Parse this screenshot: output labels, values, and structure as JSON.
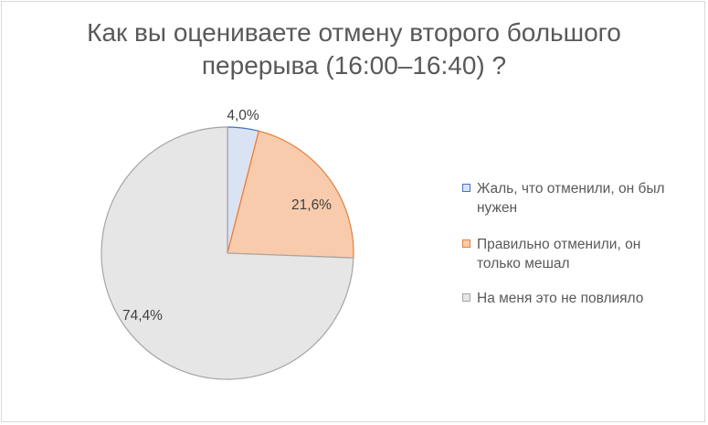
{
  "chart_data": {
    "type": "pie",
    "title": "Как вы оцениваете отмену второго большого перерыва (16:00–16:40) ?",
    "title_lines": [
      "Как вы оцениваете отмену второго большого",
      "перерыва (16:00–16:40) ?"
    ],
    "legend_position": "right",
    "slices": [
      {
        "label": "Жаль, что отменили, он был нужен",
        "legend_lines": [
          "Жаль, что отменили, он был",
          "нужен"
        ],
        "value": 4.0,
        "value_label": "4,0%",
        "fill": "#dae3f3",
        "stroke": "#4472c4"
      },
      {
        "label": "Правильно отменили, он только мешал",
        "legend_lines": [
          "Правильно отменили, он",
          "только мешал"
        ],
        "value": 21.6,
        "value_label": "21,6%",
        "fill": "#f8cbad",
        "stroke": "#ed7d31"
      },
      {
        "label": "На меня это не повлияло",
        "legend_lines": [
          "На меня это не повлияло"
        ],
        "value": 74.4,
        "value_label": "74,4%",
        "fill": "#e7e6e6",
        "stroke": "#a5a5a5"
      }
    ]
  }
}
